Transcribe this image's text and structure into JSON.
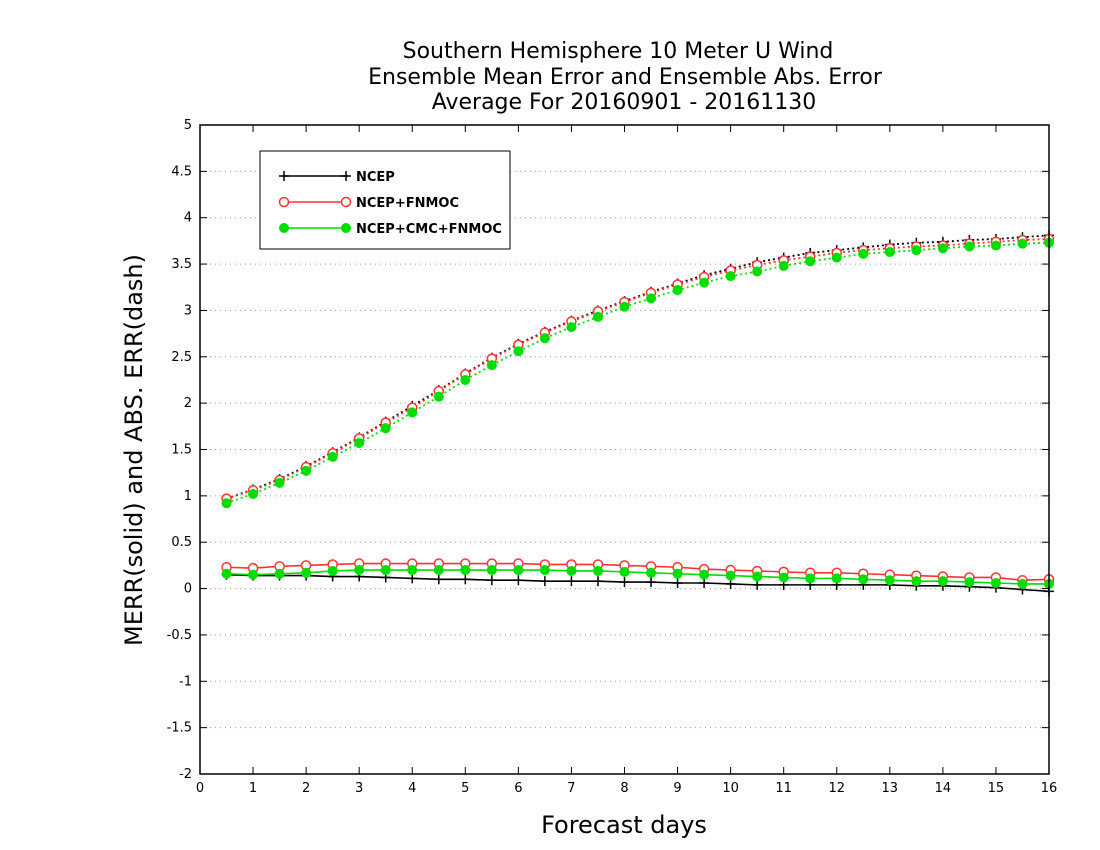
{
  "chart_data": {
    "type": "line",
    "title_lines": [
      "Southern Hemisphere 10 Meter U Wind",
      "Ensemble Mean Error and Ensemble Abs. Error",
      "Average For 20160901 - 20161130"
    ],
    "xlabel": "Forecast days",
    "ylabel": "MERR(solid) and ABS. ERR(dash)",
    "xlim": [
      0,
      16
    ],
    "ylim": [
      -2,
      5
    ],
    "x_ticks": [
      0,
      1,
      2,
      3,
      4,
      5,
      6,
      7,
      8,
      9,
      10,
      11,
      12,
      13,
      14,
      15,
      16
    ],
    "y_ticks": [
      -2,
      -1.5,
      -1,
      -0.5,
      0,
      0.5,
      1,
      1.5,
      2,
      2.5,
      3,
      3.5,
      4,
      4.5,
      5
    ],
    "y_tick_labels": [
      "-2",
      "-1.5",
      "-1",
      "-0.5",
      "0",
      "0.5",
      "1",
      "1.5",
      "2",
      "2.5",
      "3",
      "3.5",
      "4",
      "4.5",
      "5"
    ],
    "grid": "horizontal dotted",
    "legend_position": "top-left",
    "x": [
      0.5,
      1,
      1.5,
      2,
      2.5,
      3,
      3.5,
      4,
      4.5,
      5,
      5.5,
      6,
      6.5,
      7,
      7.5,
      8,
      8.5,
      9,
      9.5,
      10,
      10.5,
      11,
      11.5,
      12,
      12.5,
      13,
      13.5,
      14,
      14.5,
      15,
      15.5,
      16
    ],
    "series": [
      {
        "name": "NCEP",
        "color": "#000000",
        "marker": "plus",
        "merr": [
          0.15,
          0.14,
          0.14,
          0.14,
          0.13,
          0.13,
          0.12,
          0.11,
          0.1,
          0.1,
          0.09,
          0.09,
          0.08,
          0.08,
          0.08,
          0.07,
          0.07,
          0.06,
          0.06,
          0.05,
          0.04,
          0.04,
          0.04,
          0.04,
          0.04,
          0.04,
          0.03,
          0.03,
          0.02,
          0.01,
          -0.01,
          -0.03
        ],
        "abs_err": [
          0.97,
          1.07,
          1.18,
          1.32,
          1.47,
          1.63,
          1.8,
          1.97,
          2.14,
          2.32,
          2.49,
          2.64,
          2.77,
          2.89,
          3.0,
          3.1,
          3.2,
          3.29,
          3.38,
          3.45,
          3.52,
          3.57,
          3.62,
          3.65,
          3.68,
          3.71,
          3.73,
          3.74,
          3.76,
          3.77,
          3.79,
          3.81
        ]
      },
      {
        "name": "NCEP+FNMOC",
        "color": "#ff3333",
        "marker": "open-circle",
        "merr": [
          0.23,
          0.22,
          0.24,
          0.25,
          0.26,
          0.27,
          0.27,
          0.27,
          0.27,
          0.27,
          0.27,
          0.27,
          0.26,
          0.26,
          0.26,
          0.25,
          0.24,
          0.23,
          0.21,
          0.2,
          0.19,
          0.18,
          0.17,
          0.17,
          0.16,
          0.15,
          0.14,
          0.13,
          0.12,
          0.12,
          0.09,
          0.1
        ],
        "abs_err": [
          0.97,
          1.06,
          1.17,
          1.31,
          1.46,
          1.62,
          1.79,
          1.95,
          2.13,
          2.31,
          2.48,
          2.63,
          2.76,
          2.88,
          2.99,
          3.09,
          3.19,
          3.28,
          3.36,
          3.43,
          3.49,
          3.54,
          3.58,
          3.62,
          3.65,
          3.67,
          3.69,
          3.7,
          3.72,
          3.74,
          3.76,
          3.77
        ]
      },
      {
        "name": "NCEP+CMC+FNMOC",
        "color": "#00dd00",
        "marker": "filled-circle",
        "merr": [
          0.16,
          0.15,
          0.16,
          0.17,
          0.19,
          0.2,
          0.2,
          0.2,
          0.2,
          0.2,
          0.2,
          0.2,
          0.2,
          0.19,
          0.19,
          0.18,
          0.17,
          0.16,
          0.15,
          0.14,
          0.13,
          0.12,
          0.11,
          0.11,
          0.1,
          0.09,
          0.08,
          0.08,
          0.07,
          0.06,
          0.05,
          0.05
        ],
        "abs_err": [
          0.92,
          1.02,
          1.14,
          1.27,
          1.42,
          1.57,
          1.73,
          1.9,
          2.07,
          2.25,
          2.41,
          2.56,
          2.7,
          2.82,
          2.93,
          3.04,
          3.13,
          3.22,
          3.3,
          3.37,
          3.42,
          3.48,
          3.53,
          3.57,
          3.61,
          3.63,
          3.65,
          3.67,
          3.69,
          3.7,
          3.72,
          3.73
        ]
      }
    ]
  }
}
